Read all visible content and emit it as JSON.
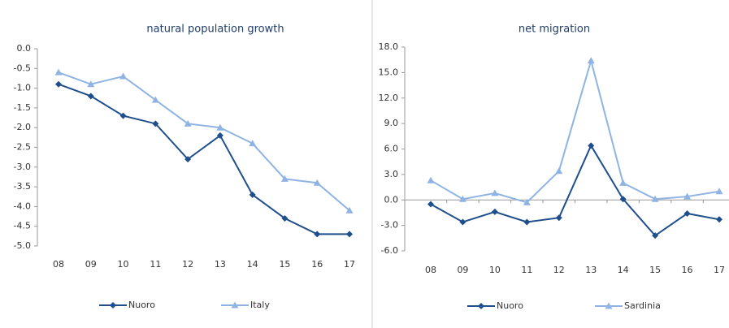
{
  "chart_data": [
    {
      "type": "line",
      "title": "natural population growth",
      "categories": [
        "08",
        "09",
        "10",
        "11",
        "12",
        "13",
        "14",
        "15",
        "16",
        "17"
      ],
      "series": [
        {
          "name": "Nuoro",
          "color": "#1f4e8c",
          "values": [
            -0.9,
            -1.2,
            -1.7,
            -1.9,
            -2.8,
            -2.2,
            -3.7,
            -4.3,
            -4.7,
            -4.7
          ]
        },
        {
          "name": "Italy",
          "color": "#8fb4e3",
          "values": [
            -0.6,
            -0.9,
            -0.7,
            -1.3,
            -1.9,
            -2.0,
            -2.4,
            -3.3,
            -3.4,
            -4.1
          ]
        }
      ],
      "ylim": [
        -5,
        0
      ],
      "yticks": [
        {
          "value": 0,
          "label": "0.0"
        },
        {
          "value": -0.5,
          "label": "-0.5"
        },
        {
          "value": -1,
          "label": "-1.0"
        },
        {
          "value": -1.5,
          "label": "-1.5"
        },
        {
          "value": -2,
          "label": "-2.0"
        },
        {
          "value": -2.5,
          "label": "-2.5"
        },
        {
          "value": -3,
          "label": "-3.0"
        },
        {
          "value": -3.5,
          "label": "-3.5"
        },
        {
          "value": -4,
          "label": "-4.0"
        },
        {
          "value": -4.5,
          "label": "-4.5"
        },
        {
          "value": -5,
          "label": "-5.0"
        }
      ],
      "legend": "bottom"
    },
    {
      "type": "line",
      "title": "net migration",
      "categories": [
        "08",
        "09",
        "10",
        "11",
        "12",
        "13",
        "14",
        "15",
        "16",
        "17"
      ],
      "series": [
        {
          "name": "Nuoro",
          "color": "#1f4e8c",
          "values": [
            -0.5,
            -2.6,
            -1.4,
            -2.6,
            -2.1,
            6.4,
            0.1,
            -4.2,
            -1.6,
            -2.3
          ]
        },
        {
          "name": "Sardinia",
          "color": "#8fb4e3",
          "values": [
            2.3,
            0.1,
            0.8,
            -0.3,
            3.4,
            16.4,
            2.0,
            0.1,
            0.4,
            1.0
          ]
        }
      ],
      "ylim": [
        -6,
        18
      ],
      "yticks": [
        {
          "value": 18,
          "label": "18.0"
        },
        {
          "value": 15,
          "label": "15.0"
        },
        {
          "value": 12,
          "label": "12.0"
        },
        {
          "value": 9,
          "label": "9.0"
        },
        {
          "value": 6,
          "label": "6.0"
        },
        {
          "value": 3,
          "label": "3.0"
        },
        {
          "value": 0,
          "label": "0.0"
        },
        {
          "value": -3,
          "label": "-3.0"
        },
        {
          "value": -6,
          "label": "-6.0"
        }
      ],
      "legend": "bottom"
    }
  ]
}
